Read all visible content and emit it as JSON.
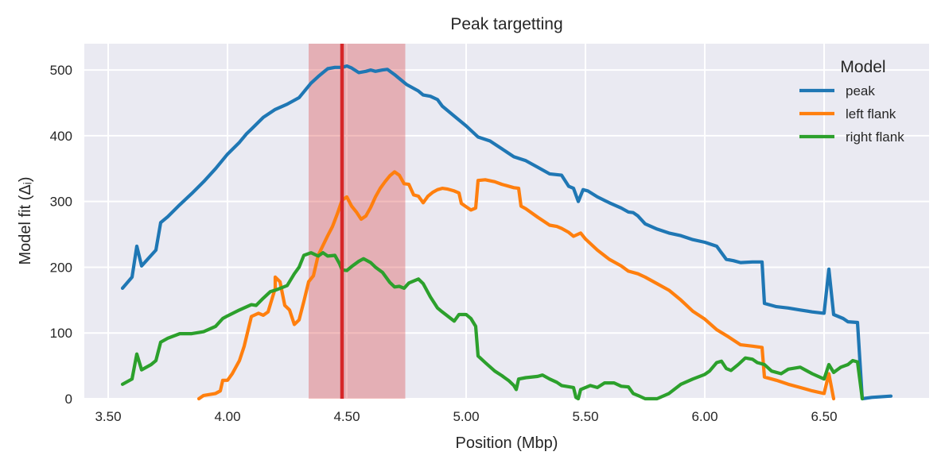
{
  "chart_data": {
    "type": "line",
    "title": "Peak targetting",
    "xlabel": "Position (Mbp)",
    "ylabel": "Model fit (Δᵢ)",
    "xlim": [
      3.4,
      6.94
    ],
    "ylim": [
      0,
      540
    ],
    "xticks": [
      3.5,
      4.0,
      4.5,
      5.0,
      5.5,
      6.0,
      6.5
    ],
    "xtick_labels": [
      "3.50",
      "4.00",
      "4.50",
      "5.00",
      "5.50",
      "6.00",
      "6.50"
    ],
    "yticks": [
      0,
      100,
      200,
      300,
      400,
      500
    ],
    "ytick_labels": [
      "0",
      "100",
      "200",
      "300",
      "400",
      "500"
    ],
    "grid": true,
    "background": "#eaeaf2",
    "legend": {
      "title": "Model",
      "placement": "top-right"
    },
    "highlight_band": {
      "x_start": 4.34,
      "x_end": 4.745,
      "color": "#d62728",
      "opacity": 0.3
    },
    "marker_line": {
      "x": 4.48,
      "color": "#d62728"
    },
    "series": [
      {
        "name": "peak",
        "color": "#1f77b4",
        "points": [
          [
            3.56,
            168
          ],
          [
            3.6,
            185
          ],
          [
            3.62,
            232
          ],
          [
            3.64,
            202
          ],
          [
            3.7,
            226
          ],
          [
            3.72,
            268
          ],
          [
            3.75,
            277
          ],
          [
            3.8,
            295
          ],
          [
            3.85,
            312
          ],
          [
            3.9,
            330
          ],
          [
            3.95,
            350
          ],
          [
            4.0,
            372
          ],
          [
            4.05,
            390
          ],
          [
            4.08,
            403
          ],
          [
            4.1,
            410
          ],
          [
            4.15,
            428
          ],
          [
            4.2,
            440
          ],
          [
            4.25,
            448
          ],
          [
            4.3,
            458
          ],
          [
            4.35,
            480
          ],
          [
            4.38,
            490
          ],
          [
            4.4,
            496
          ],
          [
            4.42,
            502
          ],
          [
            4.45,
            504
          ],
          [
            4.48,
            504
          ],
          [
            4.5,
            506
          ],
          [
            4.52,
            503
          ],
          [
            4.55,
            496
          ],
          [
            4.58,
            498
          ],
          [
            4.6,
            500
          ],
          [
            4.62,
            498
          ],
          [
            4.65,
            500
          ],
          [
            4.67,
            501
          ],
          [
            4.7,
            493
          ],
          [
            4.72,
            487
          ],
          [
            4.75,
            478
          ],
          [
            4.8,
            468
          ],
          [
            4.82,
            462
          ],
          [
            4.85,
            460
          ],
          [
            4.88,
            455
          ],
          [
            4.9,
            445
          ],
          [
            4.95,
            430
          ],
          [
            5.0,
            415
          ],
          [
            5.05,
            398
          ],
          [
            5.1,
            392
          ],
          [
            5.15,
            380
          ],
          [
            5.2,
            368
          ],
          [
            5.25,
            362
          ],
          [
            5.3,
            352
          ],
          [
            5.35,
            342
          ],
          [
            5.4,
            340
          ],
          [
            5.43,
            323
          ],
          [
            5.45,
            320
          ],
          [
            5.47,
            300
          ],
          [
            5.49,
            318
          ],
          [
            5.51,
            316
          ],
          [
            5.55,
            307
          ],
          [
            5.6,
            298
          ],
          [
            5.65,
            290
          ],
          [
            5.68,
            284
          ],
          [
            5.7,
            283
          ],
          [
            5.72,
            278
          ],
          [
            5.75,
            266
          ],
          [
            5.8,
            258
          ],
          [
            5.85,
            252
          ],
          [
            5.9,
            248
          ],
          [
            5.95,
            242
          ],
          [
            6.0,
            238
          ],
          [
            6.05,
            232
          ],
          [
            6.07,
            222
          ],
          [
            6.09,
            212
          ],
          [
            6.12,
            210
          ],
          [
            6.15,
            207
          ],
          [
            6.2,
            208
          ],
          [
            6.24,
            208
          ],
          [
            6.25,
            145
          ],
          [
            6.3,
            140
          ],
          [
            6.35,
            138
          ],
          [
            6.4,
            135
          ],
          [
            6.45,
            132
          ],
          [
            6.5,
            130
          ],
          [
            6.52,
            197
          ],
          [
            6.54,
            128
          ],
          [
            6.58,
            122
          ],
          [
            6.6,
            117
          ],
          [
            6.64,
            116
          ],
          [
            6.66,
            0
          ],
          [
            6.7,
            2
          ],
          [
            6.78,
            4
          ]
        ]
      },
      {
        "name": "left flank",
        "color": "#ff7f0e",
        "points": [
          [
            3.88,
            0
          ],
          [
            3.9,
            5
          ],
          [
            3.95,
            8
          ],
          [
            3.97,
            12
          ],
          [
            3.98,
            28
          ],
          [
            4.0,
            28
          ],
          [
            4.02,
            38
          ],
          [
            4.05,
            58
          ],
          [
            4.07,
            80
          ],
          [
            4.09,
            110
          ],
          [
            4.1,
            125
          ],
          [
            4.13,
            130
          ],
          [
            4.15,
            127
          ],
          [
            4.17,
            132
          ],
          [
            4.2,
            168
          ],
          [
            4.2,
            175
          ],
          [
            4.2,
            185
          ],
          [
            4.22,
            178
          ],
          [
            4.24,
            142
          ],
          [
            4.26,
            135
          ],
          [
            4.28,
            113
          ],
          [
            4.3,
            120
          ],
          [
            4.32,
            148
          ],
          [
            4.34,
            178
          ],
          [
            4.36,
            187
          ],
          [
            4.38,
            218
          ],
          [
            4.4,
            233
          ],
          [
            4.42,
            248
          ],
          [
            4.44,
            262
          ],
          [
            4.46,
            281
          ],
          [
            4.48,
            302
          ],
          [
            4.5,
            307
          ],
          [
            4.52,
            293
          ],
          [
            4.54,
            284
          ],
          [
            4.56,
            273
          ],
          [
            4.58,
            278
          ],
          [
            4.6,
            291
          ],
          [
            4.62,
            307
          ],
          [
            4.64,
            320
          ],
          [
            4.66,
            330
          ],
          [
            4.68,
            339
          ],
          [
            4.7,
            345
          ],
          [
            4.72,
            340
          ],
          [
            4.74,
            327
          ],
          [
            4.76,
            326
          ],
          [
            4.78,
            310
          ],
          [
            4.8,
            308
          ],
          [
            4.82,
            298
          ],
          [
            4.84,
            308
          ],
          [
            4.86,
            314
          ],
          [
            4.88,
            318
          ],
          [
            4.9,
            320
          ],
          [
            4.92,
            319
          ],
          [
            4.95,
            316
          ],
          [
            4.97,
            313
          ],
          [
            4.98,
            297
          ],
          [
            5.0,
            292
          ],
          [
            5.02,
            287
          ],
          [
            5.04,
            290
          ],
          [
            5.05,
            332
          ],
          [
            5.08,
            333
          ],
          [
            5.12,
            330
          ],
          [
            5.15,
            326
          ],
          [
            5.2,
            321
          ],
          [
            5.22,
            320
          ],
          [
            5.23,
            293
          ],
          [
            5.25,
            289
          ],
          [
            5.3,
            276
          ],
          [
            5.35,
            264
          ],
          [
            5.38,
            262
          ],
          [
            5.4,
            259
          ],
          [
            5.43,
            253
          ],
          [
            5.45,
            247
          ],
          [
            5.48,
            252
          ],
          [
            5.5,
            243
          ],
          [
            5.55,
            226
          ],
          [
            5.6,
            212
          ],
          [
            5.65,
            202
          ],
          [
            5.68,
            194
          ],
          [
            5.72,
            190
          ],
          [
            5.75,
            185
          ],
          [
            5.8,
            175
          ],
          [
            5.85,
            165
          ],
          [
            5.9,
            150
          ],
          [
            5.95,
            133
          ],
          [
            6.0,
            121
          ],
          [
            6.05,
            105
          ],
          [
            6.1,
            94
          ],
          [
            6.15,
            82
          ],
          [
            6.2,
            80
          ],
          [
            6.24,
            78
          ],
          [
            6.25,
            33
          ],
          [
            6.3,
            28
          ],
          [
            6.35,
            22
          ],
          [
            6.4,
            17
          ],
          [
            6.45,
            12
          ],
          [
            6.5,
            8
          ],
          [
            6.52,
            38
          ],
          [
            6.54,
            0
          ]
        ]
      },
      {
        "name": "right flank",
        "color": "#2ca02c",
        "points": [
          [
            3.56,
            22
          ],
          [
            3.6,
            30
          ],
          [
            3.62,
            68
          ],
          [
            3.64,
            44
          ],
          [
            3.68,
            52
          ],
          [
            3.7,
            58
          ],
          [
            3.72,
            86
          ],
          [
            3.75,
            92
          ],
          [
            3.8,
            99
          ],
          [
            3.85,
            99
          ],
          [
            3.9,
            102
          ],
          [
            3.95,
            110
          ],
          [
            3.98,
            122
          ],
          [
            4.0,
            126
          ],
          [
            4.05,
            135
          ],
          [
            4.1,
            143
          ],
          [
            4.12,
            142
          ],
          [
            4.15,
            153
          ],
          [
            4.18,
            163
          ],
          [
            4.2,
            165
          ],
          [
            4.25,
            172
          ],
          [
            4.28,
            190
          ],
          [
            4.3,
            200
          ],
          [
            4.32,
            218
          ],
          [
            4.35,
            222
          ],
          [
            4.38,
            217
          ],
          [
            4.4,
            222
          ],
          [
            4.42,
            217
          ],
          [
            4.45,
            218
          ],
          [
            4.47,
            205
          ],
          [
            4.48,
            196
          ],
          [
            4.5,
            195
          ],
          [
            4.52,
            201
          ],
          [
            4.55,
            209
          ],
          [
            4.57,
            213
          ],
          [
            4.6,
            207
          ],
          [
            4.62,
            200
          ],
          [
            4.65,
            192
          ],
          [
            4.68,
            177
          ],
          [
            4.7,
            170
          ],
          [
            4.72,
            171
          ],
          [
            4.74,
            168
          ],
          [
            4.76,
            176
          ],
          [
            4.8,
            182
          ],
          [
            4.82,
            175
          ],
          [
            4.85,
            155
          ],
          [
            4.88,
            138
          ],
          [
            4.9,
            132
          ],
          [
            4.95,
            118
          ],
          [
            4.97,
            128
          ],
          [
            5.0,
            128
          ],
          [
            5.02,
            122
          ],
          [
            5.04,
            110
          ],
          [
            5.05,
            65
          ],
          [
            5.08,
            55
          ],
          [
            5.12,
            42
          ],
          [
            5.15,
            35
          ],
          [
            5.18,
            27
          ],
          [
            5.2,
            20
          ],
          [
            5.21,
            14
          ],
          [
            5.22,
            30
          ],
          [
            5.25,
            32
          ],
          [
            5.3,
            34
          ],
          [
            5.32,
            36
          ],
          [
            5.35,
            30
          ],
          [
            5.38,
            25
          ],
          [
            5.4,
            20
          ],
          [
            5.45,
            17
          ],
          [
            5.46,
            2
          ],
          [
            5.47,
            0
          ],
          [
            5.48,
            14
          ],
          [
            5.5,
            17
          ],
          [
            5.52,
            20
          ],
          [
            5.55,
            17
          ],
          [
            5.58,
            24
          ],
          [
            5.62,
            24
          ],
          [
            5.65,
            19
          ],
          [
            5.68,
            18
          ],
          [
            5.7,
            8
          ],
          [
            5.72,
            5
          ],
          [
            5.75,
            0
          ],
          [
            5.8,
            0
          ],
          [
            5.85,
            8
          ],
          [
            5.9,
            22
          ],
          [
            5.95,
            30
          ],
          [
            6.0,
            37
          ],
          [
            6.02,
            42
          ],
          [
            6.05,
            55
          ],
          [
            6.07,
            57
          ],
          [
            6.09,
            46
          ],
          [
            6.11,
            43
          ],
          [
            6.14,
            52
          ],
          [
            6.17,
            62
          ],
          [
            6.2,
            60
          ],
          [
            6.22,
            55
          ],
          [
            6.25,
            52
          ],
          [
            6.28,
            42
          ],
          [
            6.32,
            38
          ],
          [
            6.35,
            45
          ],
          [
            6.4,
            48
          ],
          [
            6.42,
            44
          ],
          [
            6.45,
            38
          ],
          [
            6.5,
            30
          ],
          [
            6.52,
            52
          ],
          [
            6.54,
            40
          ],
          [
            6.57,
            48
          ],
          [
            6.6,
            52
          ],
          [
            6.62,
            58
          ],
          [
            6.64,
            56
          ],
          [
            6.66,
            0
          ]
        ]
      }
    ]
  }
}
